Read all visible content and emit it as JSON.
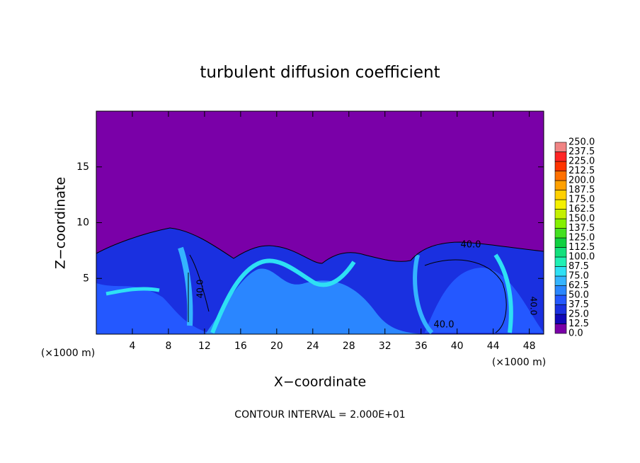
{
  "chart_data": {
    "type": "contour",
    "title": "turbulent diffusion coefficient",
    "x_label": "X−coordinate",
    "y_label": "Z−coordinate",
    "x_unit": "(×1000 m)",
    "x_unit_right": "(×1000 m)",
    "footnote": "CONTOUR INTERVAL = 2.000E+01",
    "contour_labels": [
      "40.0",
      "40.0",
      "40.0",
      "40.0"
    ],
    "xlim": [
      0,
      49.6
    ],
    "ylim": [
      0,
      20
    ],
    "xticks": [
      4,
      8,
      12,
      16,
      20,
      24,
      28,
      32,
      36,
      40,
      44,
      48
    ],
    "yticks": [
      5,
      10,
      15
    ],
    "colorbar": {
      "levels": [
        {
          "value": 0,
          "label": "0.0"
        },
        12.5,
        {
          "value": 25,
          "label": "25.0"
        },
        37.5,
        {
          "value": 50,
          "label": "50.0"
        },
        62.5,
        {
          "value": 75,
          "label": "75.0"
        },
        87.5,
        {
          "value": 100,
          "label": "100.0"
        },
        112.5,
        {
          "value": 125,
          "label": "125.0"
        },
        137.5,
        {
          "value": 150,
          "label": "150.0"
        },
        162.5,
        {
          "value": 175,
          "label": "175.0"
        },
        187.5,
        {
          "value": 200,
          "label": "200.0"
        },
        212.5,
        {
          "value": 225,
          "label": "225.0"
        },
        237.5,
        {
          "value": 250,
          "label": "250.0"
        }
      ],
      "colors": [
        "#7a00a8",
        "#1208b8",
        "#1a30e0",
        "#2458ff",
        "#2a86ff",
        "#34b4ff",
        "#2ee0f4",
        "#20f0b4",
        "#12e07c",
        "#10d040",
        "#44e020",
        "#84f000",
        "#c4f000",
        "#f4f000",
        "#ffd000",
        "#ffa000",
        "#ff7000",
        "#ff3400",
        "#ff2424",
        "#f08484"
      ]
    }
  }
}
